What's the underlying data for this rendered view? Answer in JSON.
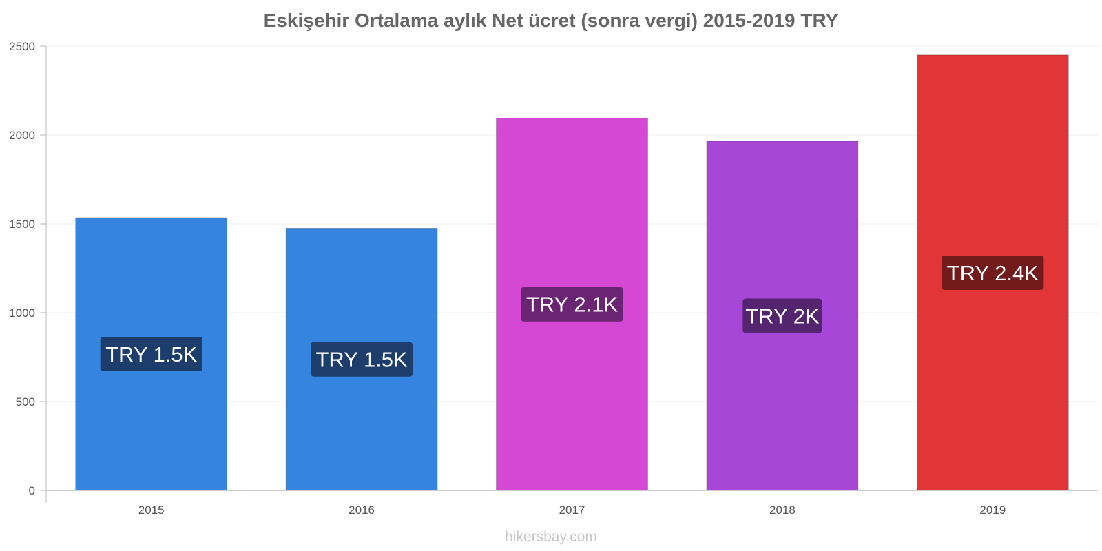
{
  "chart_data": {
    "type": "bar",
    "title": "Eskişehir Ortalama aylık Net ücret (sonra vergi) 2015-2019 TRY",
    "categories": [
      "2015",
      "2016",
      "2017",
      "2018",
      "2019"
    ],
    "values": [
      1535,
      1475,
      2095,
      1965,
      2450
    ],
    "data_labels": [
      "TRY 1.5K",
      "TRY 1.5K",
      "TRY 2.1K",
      "TRY 2K",
      "TRY 2.4K"
    ],
    "bar_colors": [
      "#3584e0",
      "#3584e0",
      "#d548d4",
      "#a747d8",
      "#e13537"
    ],
    "label_bg_colors": [
      "#1d3e6c",
      "#1d3e6c",
      "#6b2373",
      "#55246f",
      "#721a1c"
    ],
    "ylim": [
      0,
      2500
    ],
    "yticks": [
      0,
      500,
      1000,
      1500,
      2000,
      2500
    ],
    "xlabel": "",
    "ylabel": "",
    "grid": true,
    "legend": "none"
  },
  "watermark": "hikersbay.com"
}
